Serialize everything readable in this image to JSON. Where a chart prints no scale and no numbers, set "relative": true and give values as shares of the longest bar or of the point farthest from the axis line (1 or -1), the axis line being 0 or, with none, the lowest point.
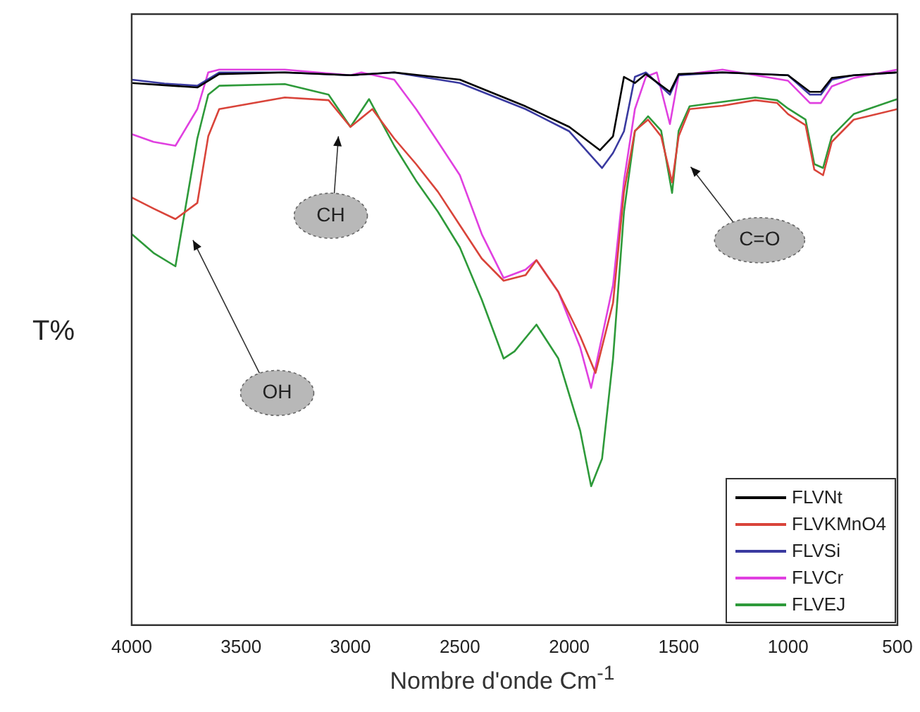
{
  "chart_data": {
    "type": "line",
    "xlabel": "Nombre d'onde Cm$^{-1}$",
    "ylabel": "T%",
    "relative": true,
    "xlim": [
      4000,
      500
    ],
    "xticks": [
      4000,
      3500,
      3000,
      2500,
      2000,
      1500,
      1000,
      500
    ],
    "grid": false,
    "legend": "bottom right",
    "marker": "none",
    "line_style": "solid",
    "annotations": [
      "OH",
      "CH",
      "C=O"
    ],
    "series": [
      {
        "name": "FLVNt",
        "color": "#000000",
        "x": [
          4000,
          3850,
          3700,
          3600,
          3300,
          3000,
          2800,
          2500,
          2200,
          2000,
          1860,
          1800,
          1750,
          1700,
          1650,
          1540,
          1500,
          1300,
          1000,
          900,
          850,
          800,
          700,
          500
        ],
        "values": [
          0.976,
          0.972,
          0.968,
          0.992,
          0.995,
          0.99,
          0.995,
          0.982,
          0.934,
          0.897,
          0.855,
          0.88,
          0.987,
          0.976,
          0.992,
          0.96,
          0.992,
          0.995,
          0.99,
          0.96,
          0.96,
          0.985,
          0.99,
          0.995
        ]
      },
      {
        "name": "FLVKMnO4",
        "color": "#d9443a",
        "x": [
          4000,
          3900,
          3800,
          3700,
          3650,
          3600,
          3300,
          3100,
          3000,
          2900,
          2800,
          2700,
          2600,
          2500,
          2400,
          2300,
          2200,
          2150,
          2050,
          1950,
          1880,
          1800,
          1750,
          1700,
          1640,
          1580,
          1530,
          1500,
          1450,
          1300,
          1150,
          1050,
          1000,
          920,
          880,
          840,
          800,
          700,
          500
        ],
        "values": [
          0.77,
          0.75,
          0.731,
          0.76,
          0.88,
          0.929,
          0.95,
          0.945,
          0.897,
          0.929,
          0.876,
          0.83,
          0.78,
          0.72,
          0.66,
          0.62,
          0.63,
          0.657,
          0.6,
          0.52,
          0.454,
          0.58,
          0.78,
          0.89,
          0.91,
          0.88,
          0.797,
          0.88,
          0.929,
          0.935,
          0.945,
          0.94,
          0.92,
          0.9,
          0.82,
          0.81,
          0.87,
          0.91,
          0.929
        ]
      },
      {
        "name": "FLVSi",
        "color": "#3a3aa0",
        "x": [
          4000,
          3850,
          3700,
          3600,
          3300,
          3000,
          2800,
          2500,
          2200,
          2000,
          1850,
          1800,
          1750,
          1700,
          1650,
          1540,
          1500,
          1300,
          1000,
          900,
          850,
          800,
          700,
          500
        ],
        "values": [
          0.982,
          0.975,
          0.971,
          0.995,
          0.995,
          0.99,
          0.995,
          0.976,
          0.929,
          0.889,
          0.823,
          0.85,
          0.889,
          0.987,
          0.995,
          0.955,
          0.99,
          0.995,
          0.99,
          0.955,
          0.955,
          0.982,
          0.99,
          0.995
        ]
      },
      {
        "name": "FLVCr",
        "color": "#e040e0",
        "x": [
          4000,
          3900,
          3800,
          3700,
          3650,
          3600,
          3300,
          3000,
          2950,
          2800,
          2700,
          2600,
          2500,
          2400,
          2300,
          2200,
          2150,
          2050,
          1950,
          1900,
          1800,
          1750,
          1700,
          1650,
          1600,
          1540,
          1500,
          1300,
          1000,
          900,
          850,
          800,
          700,
          500
        ],
        "values": [
          0.884,
          0.87,
          0.863,
          0.929,
          0.995,
          1.0,
          1.0,
          0.99,
          0.995,
          0.982,
          0.929,
          0.87,
          0.81,
          0.704,
          0.625,
          0.64,
          0.657,
          0.6,
          0.5,
          0.427,
          0.612,
          0.8,
          0.929,
          0.987,
          0.995,
          0.902,
          0.99,
          1.0,
          0.98,
          0.94,
          0.94,
          0.97,
          0.985,
          1.0
        ]
      },
      {
        "name": "FLVEJ",
        "color": "#2e9a3a",
        "x": [
          4000,
          3900,
          3800,
          3700,
          3650,
          3600,
          3300,
          3100,
          3000,
          2915,
          2800,
          2700,
          2600,
          2500,
          2400,
          2300,
          2250,
          2150,
          2050,
          1950,
          1900,
          1850,
          1800,
          1750,
          1700,
          1640,
          1580,
          1530,
          1500,
          1450,
          1300,
          1150,
          1050,
          1000,
          920,
          880,
          840,
          800,
          700,
          500
        ],
        "values": [
          0.704,
          0.67,
          0.646,
          0.876,
          0.955,
          0.971,
          0.974,
          0.955,
          0.897,
          0.947,
          0.863,
          0.8,
          0.744,
          0.68,
          0.586,
          0.48,
          0.493,
          0.541,
          0.48,
          0.35,
          0.25,
          0.3,
          0.48,
          0.744,
          0.889,
          0.916,
          0.89,
          0.778,
          0.89,
          0.934,
          0.942,
          0.95,
          0.945,
          0.93,
          0.91,
          0.83,
          0.823,
          0.88,
          0.92,
          0.947
        ]
      }
    ]
  }
}
